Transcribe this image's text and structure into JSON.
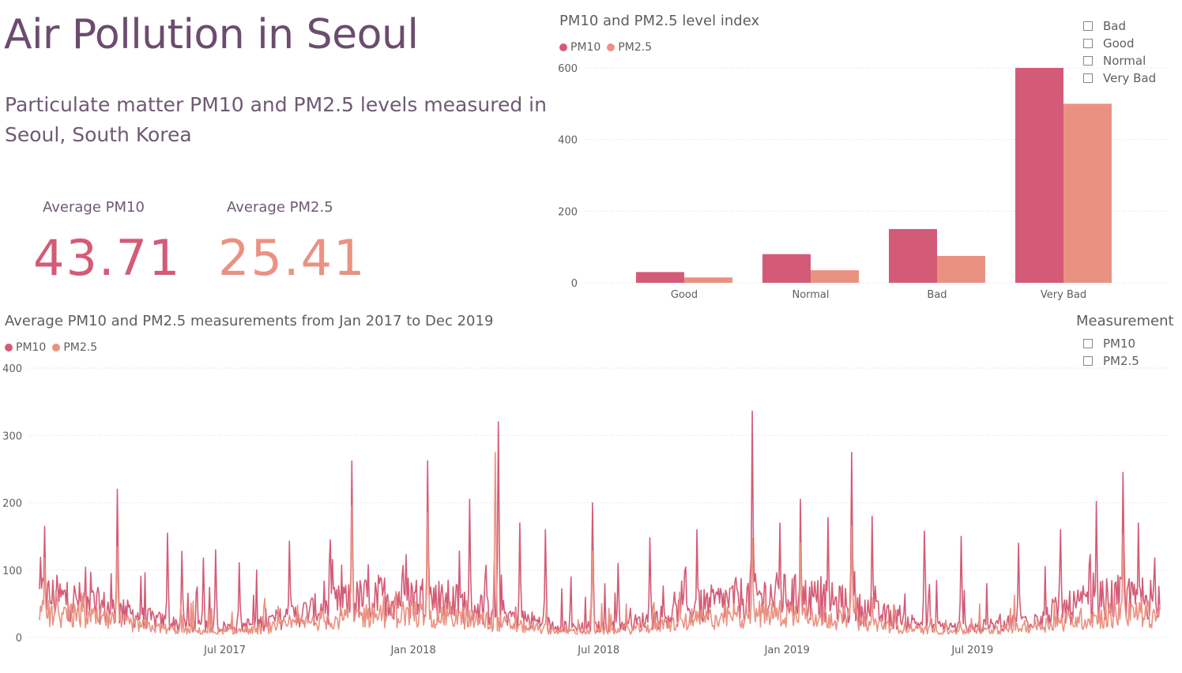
{
  "header": {
    "title": "Air Pollution in Seoul",
    "subtitle": "Particulate matter PM10 and PM2.5 levels measured in Seoul, South Korea"
  },
  "kpis": [
    {
      "label": "Average PM10",
      "value": "43.71",
      "color": "#D45B77"
    },
    {
      "label": "Average PM2.5",
      "value": "25.41",
      "color": "#EA9282"
    }
  ],
  "colors": {
    "pm10": "#D45B77",
    "pm25": "#EA9282"
  },
  "level_slicer": {
    "options": [
      "Bad",
      "Good",
      "Normal",
      "Very Bad"
    ]
  },
  "measurement_slicer": {
    "title": "Measurement",
    "options": [
      "PM10",
      "PM2.5"
    ]
  },
  "chart_data": [
    {
      "type": "bar",
      "title": "PM10 and PM2.5 level index",
      "categories": [
        "Good",
        "Normal",
        "Bad",
        "Very Bad"
      ],
      "series": [
        {
          "name": "PM10",
          "values": [
            30,
            80,
            150,
            600
          ]
        },
        {
          "name": "PM2.5",
          "values": [
            15,
            35,
            75,
            500
          ]
        }
      ],
      "ylim": [
        0,
        600
      ],
      "yticks": [
        0,
        200,
        400,
        600
      ],
      "legend": "top-left",
      "grid": true
    },
    {
      "type": "line",
      "title": "Average PM10 and PM2.5 measurements from Jan 2017 to Dec 2019",
      "x_range": [
        "2017-01-01",
        "2019-12-31"
      ],
      "x_tick_labels": [
        "Jul 2017",
        "Jan 2018",
        "Jul 2018",
        "Jan 2019",
        "Jul 2019"
      ],
      "x_tick_dates": [
        "2017-07-01",
        "2018-01-01",
        "2018-07-01",
        "2019-01-01",
        "2019-07-01"
      ],
      "ylim": [
        0,
        400
      ],
      "yticks": [
        0,
        100,
        200,
        300,
        400
      ],
      "legend": "top-left",
      "grid": true,
      "series": [
        {
          "name": "PM10",
          "peaks": [
            [
              "2017-01-06",
              165
            ],
            [
              "2017-02-20",
              97
            ],
            [
              "2017-03-18",
              220
            ],
            [
              "2017-05-06",
              155
            ],
            [
              "2017-05-20",
              128
            ],
            [
              "2017-06-10",
              118
            ],
            [
              "2017-06-22",
              130
            ],
            [
              "2017-07-15",
              111
            ],
            [
              "2017-09-02",
              143
            ],
            [
              "2017-10-12",
              145
            ],
            [
              "2017-11-02",
              262
            ],
            [
              "2017-11-18",
              108
            ],
            [
              "2017-12-25",
              123
            ],
            [
              "2018-01-15",
              262
            ],
            [
              "2018-02-25",
              205
            ],
            [
              "2018-03-25",
              320
            ],
            [
              "2018-04-15",
              170
            ],
            [
              "2018-05-10",
              160
            ],
            [
              "2018-06-25",
              200
            ],
            [
              "2018-07-20",
              110
            ],
            [
              "2018-08-20",
              148
            ],
            [
              "2018-10-05",
              160
            ],
            [
              "2018-11-28",
              336
            ],
            [
              "2018-12-25",
              170
            ],
            [
              "2019-01-14",
              205
            ],
            [
              "2019-02-10",
              178
            ],
            [
              "2019-03-05",
              275
            ],
            [
              "2019-03-25",
              180
            ],
            [
              "2019-05-15",
              158
            ],
            [
              "2019-06-20",
              150
            ],
            [
              "2019-08-15",
              140
            ],
            [
              "2019-09-25",
              160
            ],
            [
              "2019-10-30",
              202
            ],
            [
              "2019-11-25",
              245
            ],
            [
              "2019-12-10",
              170
            ],
            [
              "2019-12-26",
              118
            ]
          ],
          "max_value": 336
        },
        {
          "name": "PM2.5",
          "peaks": [
            [
              "2017-01-06",
              118
            ],
            [
              "2017-03-18",
              135
            ],
            [
              "2017-11-02",
              196
            ],
            [
              "2018-01-15",
              185
            ],
            [
              "2018-03-22",
              275
            ],
            [
              "2018-06-25",
              128
            ],
            [
              "2018-11-28",
              148
            ],
            [
              "2019-01-14",
              140
            ],
            [
              "2019-03-05",
              165
            ],
            [
              "2019-11-25",
              152
            ]
          ],
          "max_value": 275
        }
      ]
    }
  ]
}
